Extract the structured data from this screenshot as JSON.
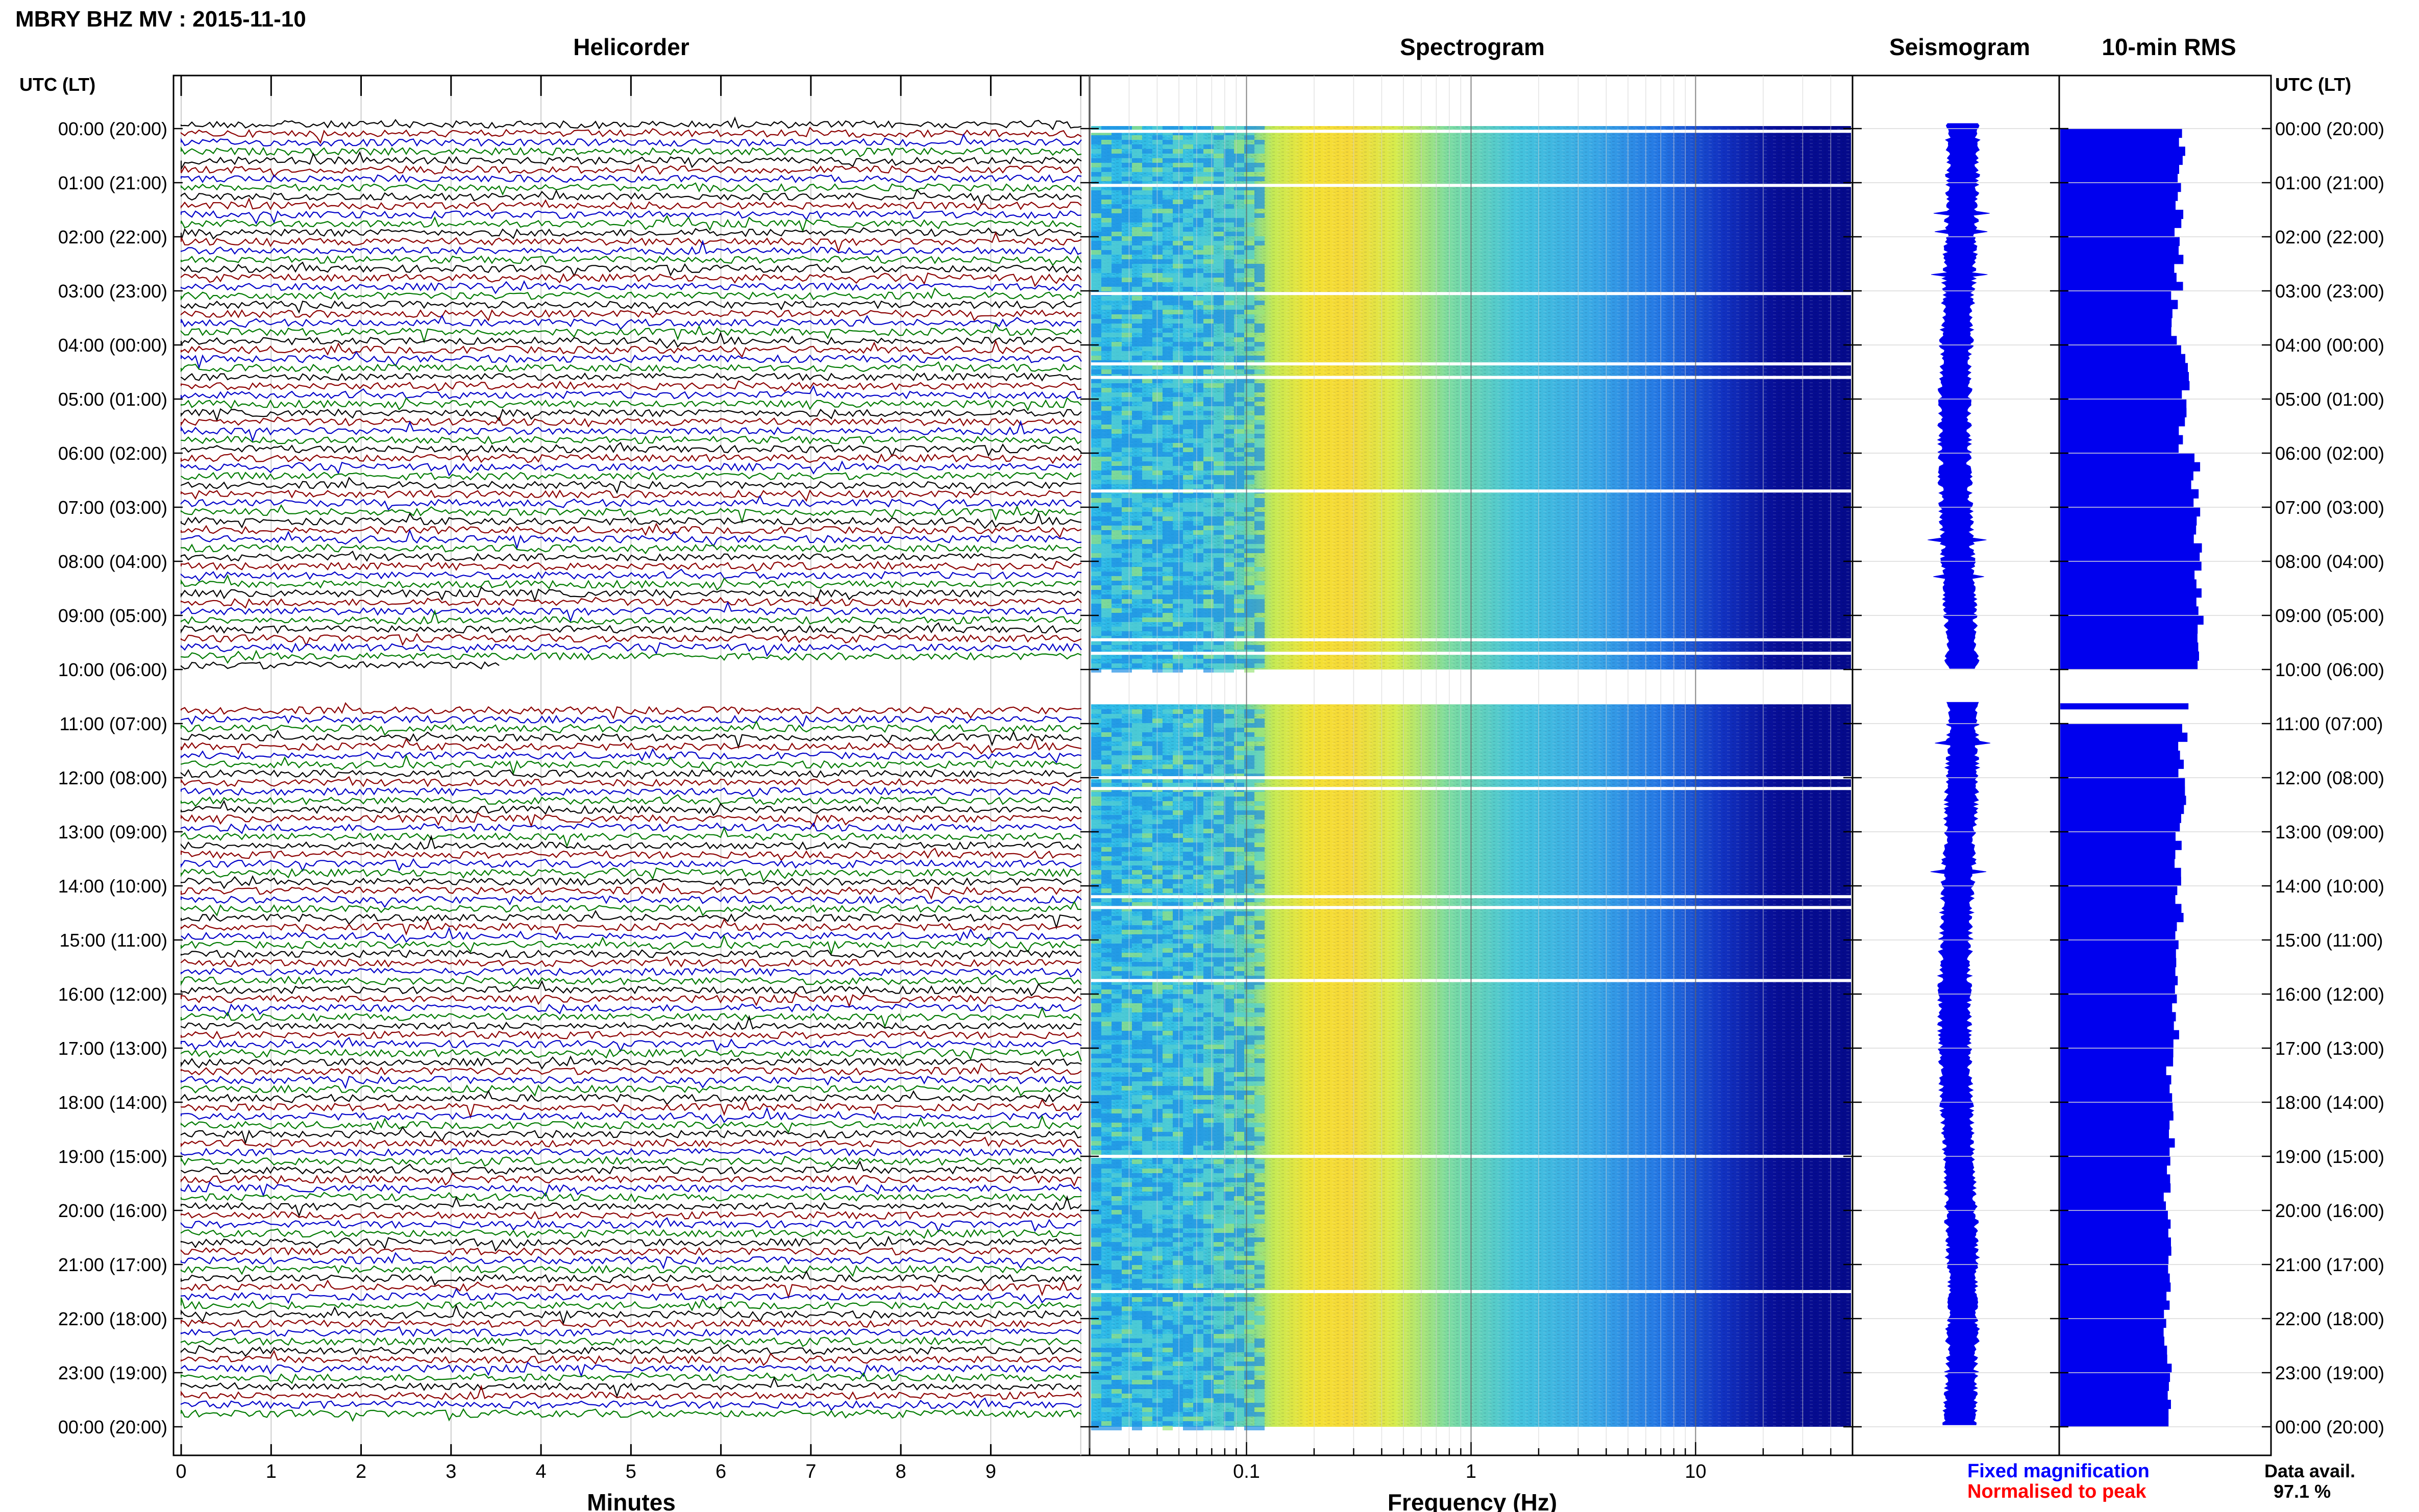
{
  "title": "MBRY BHZ MV : 2015-11-10",
  "panels": {
    "helicorder": "Helicorder",
    "spectrogram": "Spectrogram",
    "seismogram": "Seismogram",
    "rms": "10-min RMS"
  },
  "left_axis_header": "UTC (LT)",
  "right_axis_header": "UTC (LT)",
  "time_labels": [
    "00:00 (20:00)",
    "01:00 (21:00)",
    "02:00 (22:00)",
    "03:00 (23:00)",
    "04:00 (00:00)",
    "05:00 (01:00)",
    "06:00 (02:00)",
    "07:00 (03:00)",
    "08:00 (04:00)",
    "09:00 (05:00)",
    "10:00 (06:00)",
    "11:00 (07:00)",
    "12:00 (08:00)",
    "13:00 (09:00)",
    "14:00 (10:00)",
    "15:00 (11:00)",
    "16:00 (12:00)",
    "17:00 (13:00)",
    "18:00 (14:00)",
    "19:00 (15:00)",
    "20:00 (16:00)",
    "21:00 (17:00)",
    "22:00 (18:00)",
    "23:00 (19:00)",
    "00:00 (20:00)"
  ],
  "helicorder_x_ticks": [
    "0",
    "1",
    "2",
    "3",
    "4",
    "5",
    "6",
    "7",
    "8",
    "9"
  ],
  "helicorder_xlabel": "Minutes",
  "spectrogram_x_ticks": [
    "0.1",
    "1",
    "10"
  ],
  "spectrogram_xlabel": "Frequency (Hz)",
  "legend": {
    "fixed": "Fixed magnification",
    "normalised": "Normalised to peak"
  },
  "data_avail_label": "Data avail.",
  "data_avail_value": "97.1 %",
  "colors": {
    "trace_colors": [
      "#000000",
      "#8b0000",
      "#0000c8",
      "#007a00"
    ],
    "rms_bar": "#0000ee",
    "legend_fixed": "#0000ff",
    "legend_normalised": "#ff0000"
  },
  "chart_data": {
    "type": "heatmap",
    "title": "MBRY BHZ MV : 2015-11-10",
    "data_gap_utc_hours": [
      10.0,
      10.7
    ],
    "helicorder": {
      "x_range_minutes": [
        0,
        10
      ],
      "traces_per_hour": 6,
      "trace_color_cycle": [
        "black",
        "darkred",
        "blue",
        "green"
      ]
    },
    "spectrogram": {
      "x_scale": "log",
      "x_range_hz": [
        0.02,
        50
      ],
      "peak_energy_band_hz": [
        0.2,
        0.5
      ]
    },
    "rms_10min": {
      "hours_utc": [
        0,
        1,
        2,
        3,
        4,
        5,
        6,
        7,
        8,
        9,
        11,
        12,
        13,
        14,
        15,
        16,
        17,
        18,
        19,
        20,
        21,
        22,
        23
      ],
      "relative_values": [
        0.63,
        0.62,
        0.62,
        0.6,
        0.65,
        0.64,
        0.71,
        0.72,
        0.73,
        0.72,
        0.64,
        0.65,
        0.62,
        0.62,
        0.61,
        0.6,
        0.57,
        0.58,
        0.56,
        0.57,
        0.56,
        0.56,
        0.56
      ]
    }
  }
}
